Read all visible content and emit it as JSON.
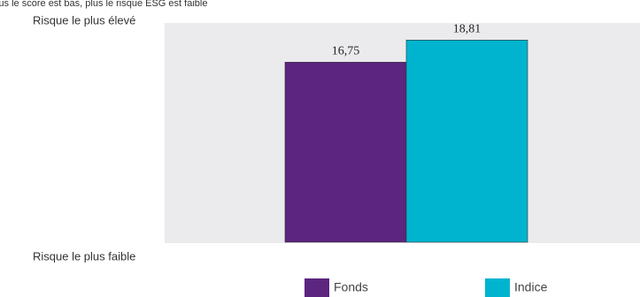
{
  "chart_data": {
    "type": "bar",
    "title": "lus le score est bas, plus le risque ESG est faible",
    "annotations": [
      "Risque le plus élevé",
      "Risque le plus faible"
    ],
    "categories": [
      null
    ],
    "ylim": [
      0,
      20.4
    ],
    "series": [
      {
        "name": "Fonds",
        "color": "#5b2580",
        "values": [
          16.75
        ],
        "value_labels": [
          "16,75"
        ]
      },
      {
        "name": "Indice",
        "color": "#00b4cf",
        "values": [
          18.81
        ],
        "value_labels": [
          "18,81"
        ]
      }
    ]
  }
}
